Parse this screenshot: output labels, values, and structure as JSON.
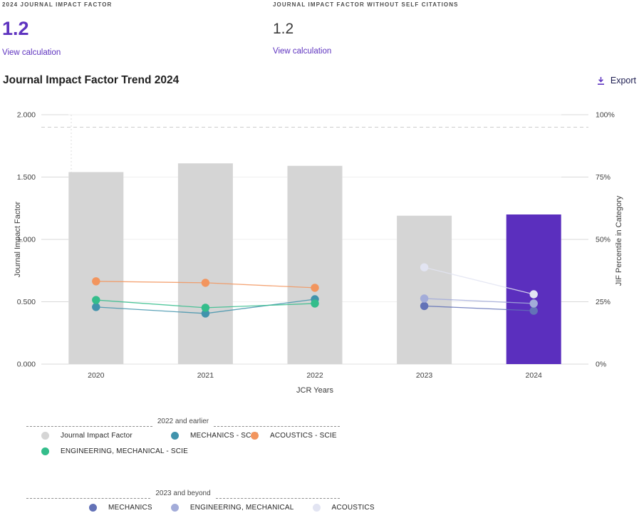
{
  "metrics": [
    {
      "label": "2024 JOURNAL IMPACT FACTOR",
      "value": "1.2",
      "link": "View calculation"
    },
    {
      "label": "JOURNAL IMPACT FACTOR WITHOUT SELF CITATIONS",
      "value": "1.2",
      "link": "View calculation"
    }
  ],
  "trend": {
    "title": "Journal Impact Factor Trend 2024",
    "export_label": "Export",
    "export_icon": "download-icon"
  },
  "colors": {
    "accent_purple": "#5b2fbe",
    "bar_gray": "#d5d5d5",
    "mechanics_scie": "#4193ac",
    "acoustics_scie": "#f2955e",
    "engineering_mechanical_scie": "#34bd8b",
    "mechanics": "#6372b7",
    "engineering_mechanical": "#a3acd9",
    "acoustics": "#e2e4f2"
  },
  "chart_data": {
    "type": "bar",
    "title": "Journal Impact Factor Trend 2024",
    "xlabel": "JCR Years",
    "ylabel_left": "Journal Impact Factor",
    "ylabel_right": "JIF Percentile in Category",
    "categories": [
      "2020",
      "2021",
      "2022",
      "2023",
      "2024"
    ],
    "left_axis": {
      "min": 0,
      "max": 2,
      "tick_labels": [
        "0.000",
        "0.500",
        "1.000",
        "1.500",
        "2.000"
      ],
      "tick_values": [
        0,
        0.5,
        1,
        1.5,
        2
      ]
    },
    "right_axis": {
      "min": 0,
      "max": 100,
      "tick_labels": [
        "0%",
        "25%",
        "50%",
        "75%",
        "100%"
      ],
      "tick_values": [
        0,
        25,
        50,
        75,
        100
      ]
    },
    "bars": {
      "name": "Journal Impact Factor",
      "values": [
        1.54,
        1.61,
        1.59,
        1.19,
        1.2
      ],
      "bar_colors": [
        "#d5d5d5",
        "#d5d5d5",
        "#d5d5d5",
        "#d5d5d5",
        "#5b2fbe"
      ]
    },
    "line_series": [
      {
        "name": "MECHANICS - SCIE",
        "color": "#4193ac",
        "x": [
          "2020",
          "2021",
          "2022"
        ],
        "percentiles": [
          22.9,
          20.3,
          26.0
        ]
      },
      {
        "name": "ACOUSTICS - SCIE",
        "color": "#f2955e",
        "x": [
          "2020",
          "2021",
          "2022"
        ],
        "percentiles": [
          33.2,
          32.6,
          30.6
        ]
      },
      {
        "name": "ENGINEERING, MECHANICAL - SCIE",
        "color": "#34bd8b",
        "x": [
          "2020",
          "2021",
          "2022"
        ],
        "percentiles": [
          25.7,
          22.6,
          24.3
        ]
      },
      {
        "name": "MECHANICS",
        "color": "#6372b7",
        "x": [
          "2023",
          "2024"
        ],
        "percentiles": [
          23.3,
          21.4
        ]
      },
      {
        "name": "ENGINEERING, MECHANICAL",
        "color": "#a3acd9",
        "x": [
          "2023",
          "2024"
        ],
        "percentiles": [
          26.3,
          24.3
        ]
      },
      {
        "name": "ACOUSTICS",
        "color": "#e2e4f2",
        "x": [
          "2023",
          "2024"
        ],
        "percentiles": [
          38.8,
          28.0
        ]
      }
    ],
    "reference_lines": {
      "horizontal_dashed_left_axis_value": 1.9
    },
    "grid": true,
    "legend_position": "bottom"
  },
  "legends": [
    {
      "title": "2022 and earlier",
      "items": [
        {
          "label": "Journal Impact Factor",
          "color": "#d5d5d5"
        },
        {
          "label": "MECHANICS - SCIE",
          "color": "#4193ac"
        },
        {
          "label": "ACOUSTICS - SCIE",
          "color": "#f2955e"
        },
        {
          "label": "ENGINEERING, MECHANICAL - SCIE",
          "color": "#34bd8b"
        }
      ]
    },
    {
      "title": "2023 and beyond",
      "items": [
        {
          "label": "MECHANICS",
          "color": "#6372b7"
        },
        {
          "label": "ENGINEERING, MECHANICAL",
          "color": "#a3acd9"
        },
        {
          "label": "ACOUSTICS",
          "color": "#e2e4f2"
        }
      ]
    }
  ]
}
